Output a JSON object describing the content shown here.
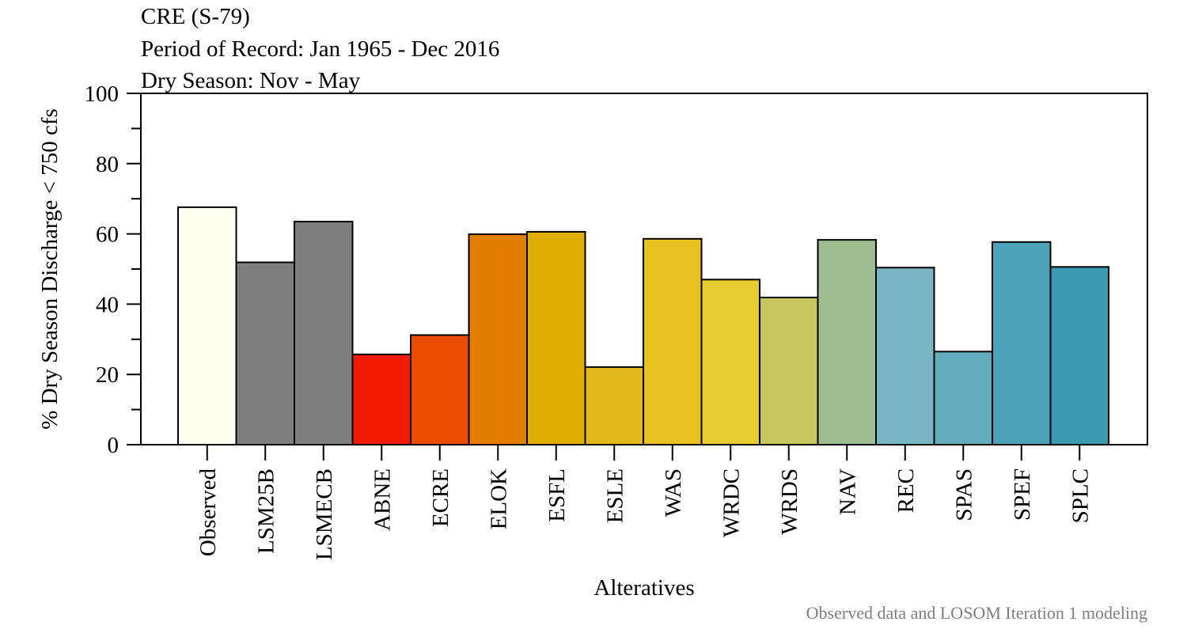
{
  "chart_data": {
    "type": "bar",
    "title_lines": [
      "CRE (S-79)",
      "Period of Record: Jan 1965 - Dec 2016",
      "Dry Season: Nov - May"
    ],
    "xlabel": "Alteratives",
    "ylabel": "% Dry Season Discharge < 750 cfs",
    "ylim": [
      0,
      100
    ],
    "yticks": [
      0,
      20,
      40,
      60,
      80,
      100
    ],
    "categories": [
      "Observed",
      "LSM25B",
      "LSMECB",
      "ABNE",
      "ECRE",
      "ELOK",
      "ESFL",
      "ESLE",
      "WAS",
      "WRDC",
      "WRDS",
      "NAV",
      "REC",
      "SPAS",
      "SPEF",
      "SPLC"
    ],
    "values": [
      67.6,
      51.9,
      63.5,
      25.7,
      31.2,
      59.9,
      60.6,
      22.1,
      58.6,
      47.0,
      41.9,
      58.3,
      50.4,
      26.5,
      57.7,
      50.6
    ],
    "colors": [
      "#FFFFF0",
      "#7F7F7F",
      "#7F7F7F",
      "#F21A00",
      "#EB4C00",
      "#E37D00",
      "#E0AE00",
      "#E3B81C",
      "#E6C11F",
      "#E8CB30",
      "#C7C65D",
      "#9EBE91",
      "#79B6C4",
      "#63ACBE",
      "#4CA3B9",
      "#3B9AB2"
    ],
    "grid": false,
    "legend": "none",
    "caption": "Observed data and LOSOM Iteration 1 modeling"
  }
}
